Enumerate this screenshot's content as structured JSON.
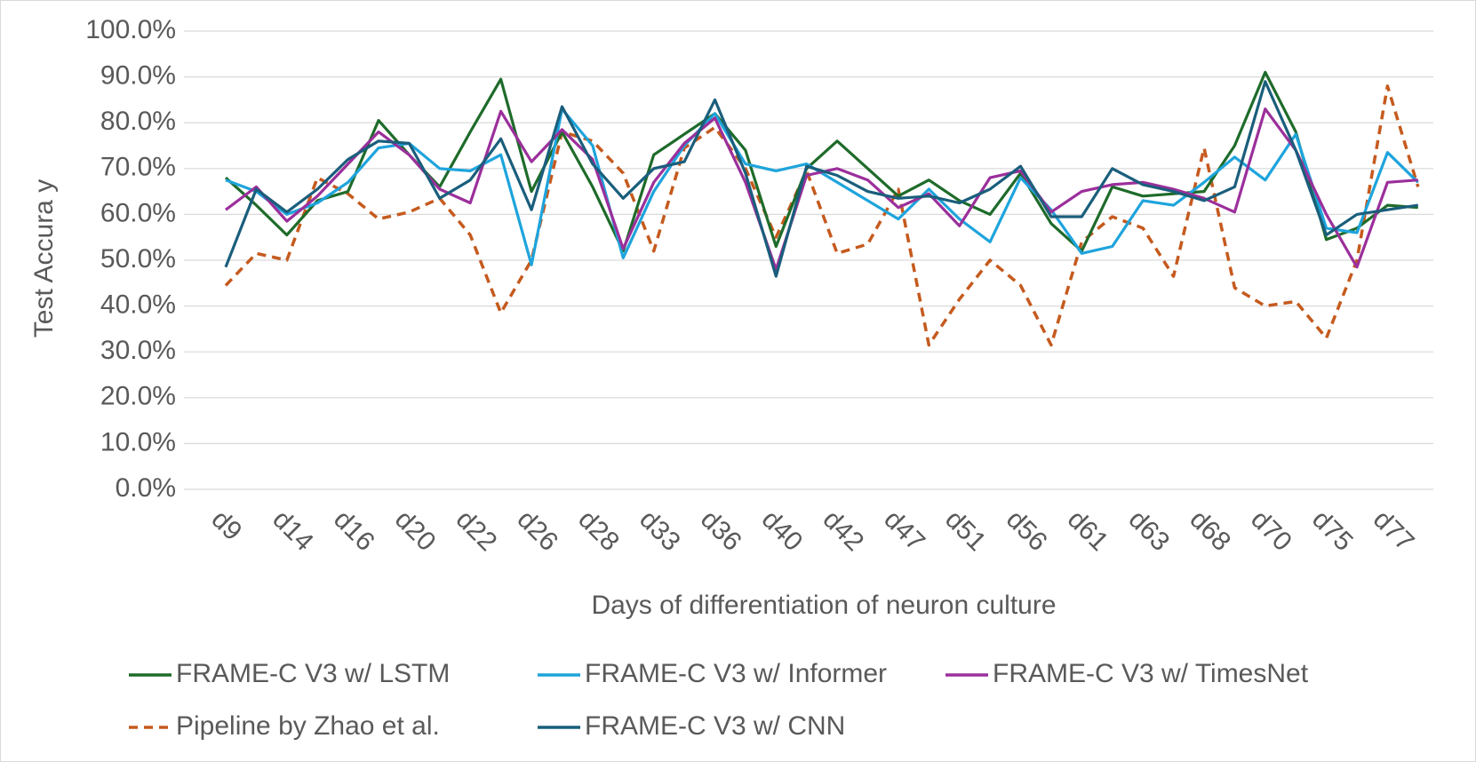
{
  "chart_data": {
    "type": "line",
    "xlabel": "Days of differentiation of neuron culture",
    "ylabel": "Test Accura y",
    "categories": [
      "d9",
      null,
      "d14",
      null,
      "d16",
      null,
      "d20",
      null,
      "d22",
      null,
      "d26",
      null,
      "d28",
      null,
      "d33",
      null,
      "d36",
      null,
      "d40",
      null,
      "d42",
      null,
      "d47",
      null,
      "d51",
      null,
      "d56",
      null,
      "d61",
      null,
      "d63",
      null,
      "d68",
      null,
      "d70",
      null,
      "d75",
      null,
      "d77",
      null
    ],
    "ylim": [
      0,
      100
    ],
    "yticks": [
      {
        "value": 0,
        "label": "0.0%"
      },
      {
        "value": 10,
        "label": "10.0%"
      },
      {
        "value": 20,
        "label": "20.0%"
      },
      {
        "value": 30,
        "label": "30.0%"
      },
      {
        "value": 40,
        "label": "40.0%"
      },
      {
        "value": 50,
        "label": "50.0%"
      },
      {
        "value": 60,
        "label": "60.0%"
      },
      {
        "value": 70,
        "label": "70.0%"
      },
      {
        "value": 80,
        "label": "80.0%"
      },
      {
        "value": 90,
        "label": "90.0%"
      },
      {
        "value": 100,
        "label": "100.0%"
      }
    ],
    "grid": true,
    "legend": "bottom",
    "series": [
      {
        "name": "FRAME-C V3 w/ LSTM",
        "color": "#1e6b2a",
        "values": [
          68,
          62,
          55.5,
          63,
          65,
          80.5,
          73,
          66,
          78,
          89.5,
          65,
          78,
          66,
          52,
          73,
          77.5,
          82,
          74,
          53,
          70,
          76,
          70,
          64,
          67.5,
          63,
          60,
          69,
          58,
          52,
          66,
          64,
          64.5,
          65,
          75,
          91,
          78,
          54.5,
          57,
          62,
          61.5
        ]
      },
      {
        "name": "FRAME-C V3 w/ Informer",
        "color": "#1ea4dc",
        "values": [
          67.5,
          65,
          60,
          62.5,
          67,
          74.5,
          75.5,
          70,
          69.5,
          73,
          49,
          83,
          75,
          50.5,
          65,
          75,
          82,
          71,
          69.5,
          71,
          67,
          63,
          59,
          65.5,
          59,
          54,
          68,
          61,
          51.5,
          53,
          63,
          62,
          67,
          72.5,
          67.5,
          77.5,
          57,
          56,
          73.5,
          67
        ]
      },
      {
        "name": "FRAME-C V3 w/ TimesNet",
        "color": "#9b2f9b",
        "values": [
          61,
          66,
          58.5,
          64,
          71,
          78,
          73,
          65.5,
          62.5,
          82.5,
          71.5,
          78.5,
          72,
          52.5,
          67,
          75.5,
          81,
          67,
          48,
          68.5,
          70,
          67.5,
          61.5,
          64.5,
          57.5,
          68,
          69.5,
          60.5,
          65,
          66.5,
          67,
          65.5,
          63.5,
          60.5,
          83,
          74,
          60,
          48.5,
          67,
          67.5
        ]
      },
      {
        "name": "Pipeline by Zhao et al.",
        "color": "#c55a1e",
        "dashed": true,
        "values": [
          44.5,
          51.5,
          50,
          68,
          64.5,
          59,
          60.5,
          63.5,
          55.5,
          38.5,
          50,
          78,
          76,
          69,
          52,
          74.5,
          79,
          70,
          55,
          69.5,
          51.5,
          53.5,
          65.5,
          31.5,
          41.5,
          50,
          44.5,
          31.5,
          54,
          59.5,
          57,
          46.5,
          74.5,
          44,
          40,
          41,
          33,
          50,
          88,
          66
        ]
      },
      {
        "name": "FRAME-C V3 w/ CNN",
        "color": "#1a5e7c",
        "values": [
          48.5,
          65.5,
          60.5,
          65.5,
          72,
          76,
          75.5,
          63.5,
          67.5,
          76.5,
          61,
          83.5,
          71,
          63.5,
          70,
          71.5,
          85,
          69,
          46.5,
          70.5,
          68.5,
          65,
          63.5,
          64,
          62.5,
          65.5,
          70.5,
          59.5,
          59.5,
          70,
          66.5,
          65,
          63,
          66,
          89,
          74,
          55.5,
          60,
          61,
          62
        ]
      }
    ]
  }
}
